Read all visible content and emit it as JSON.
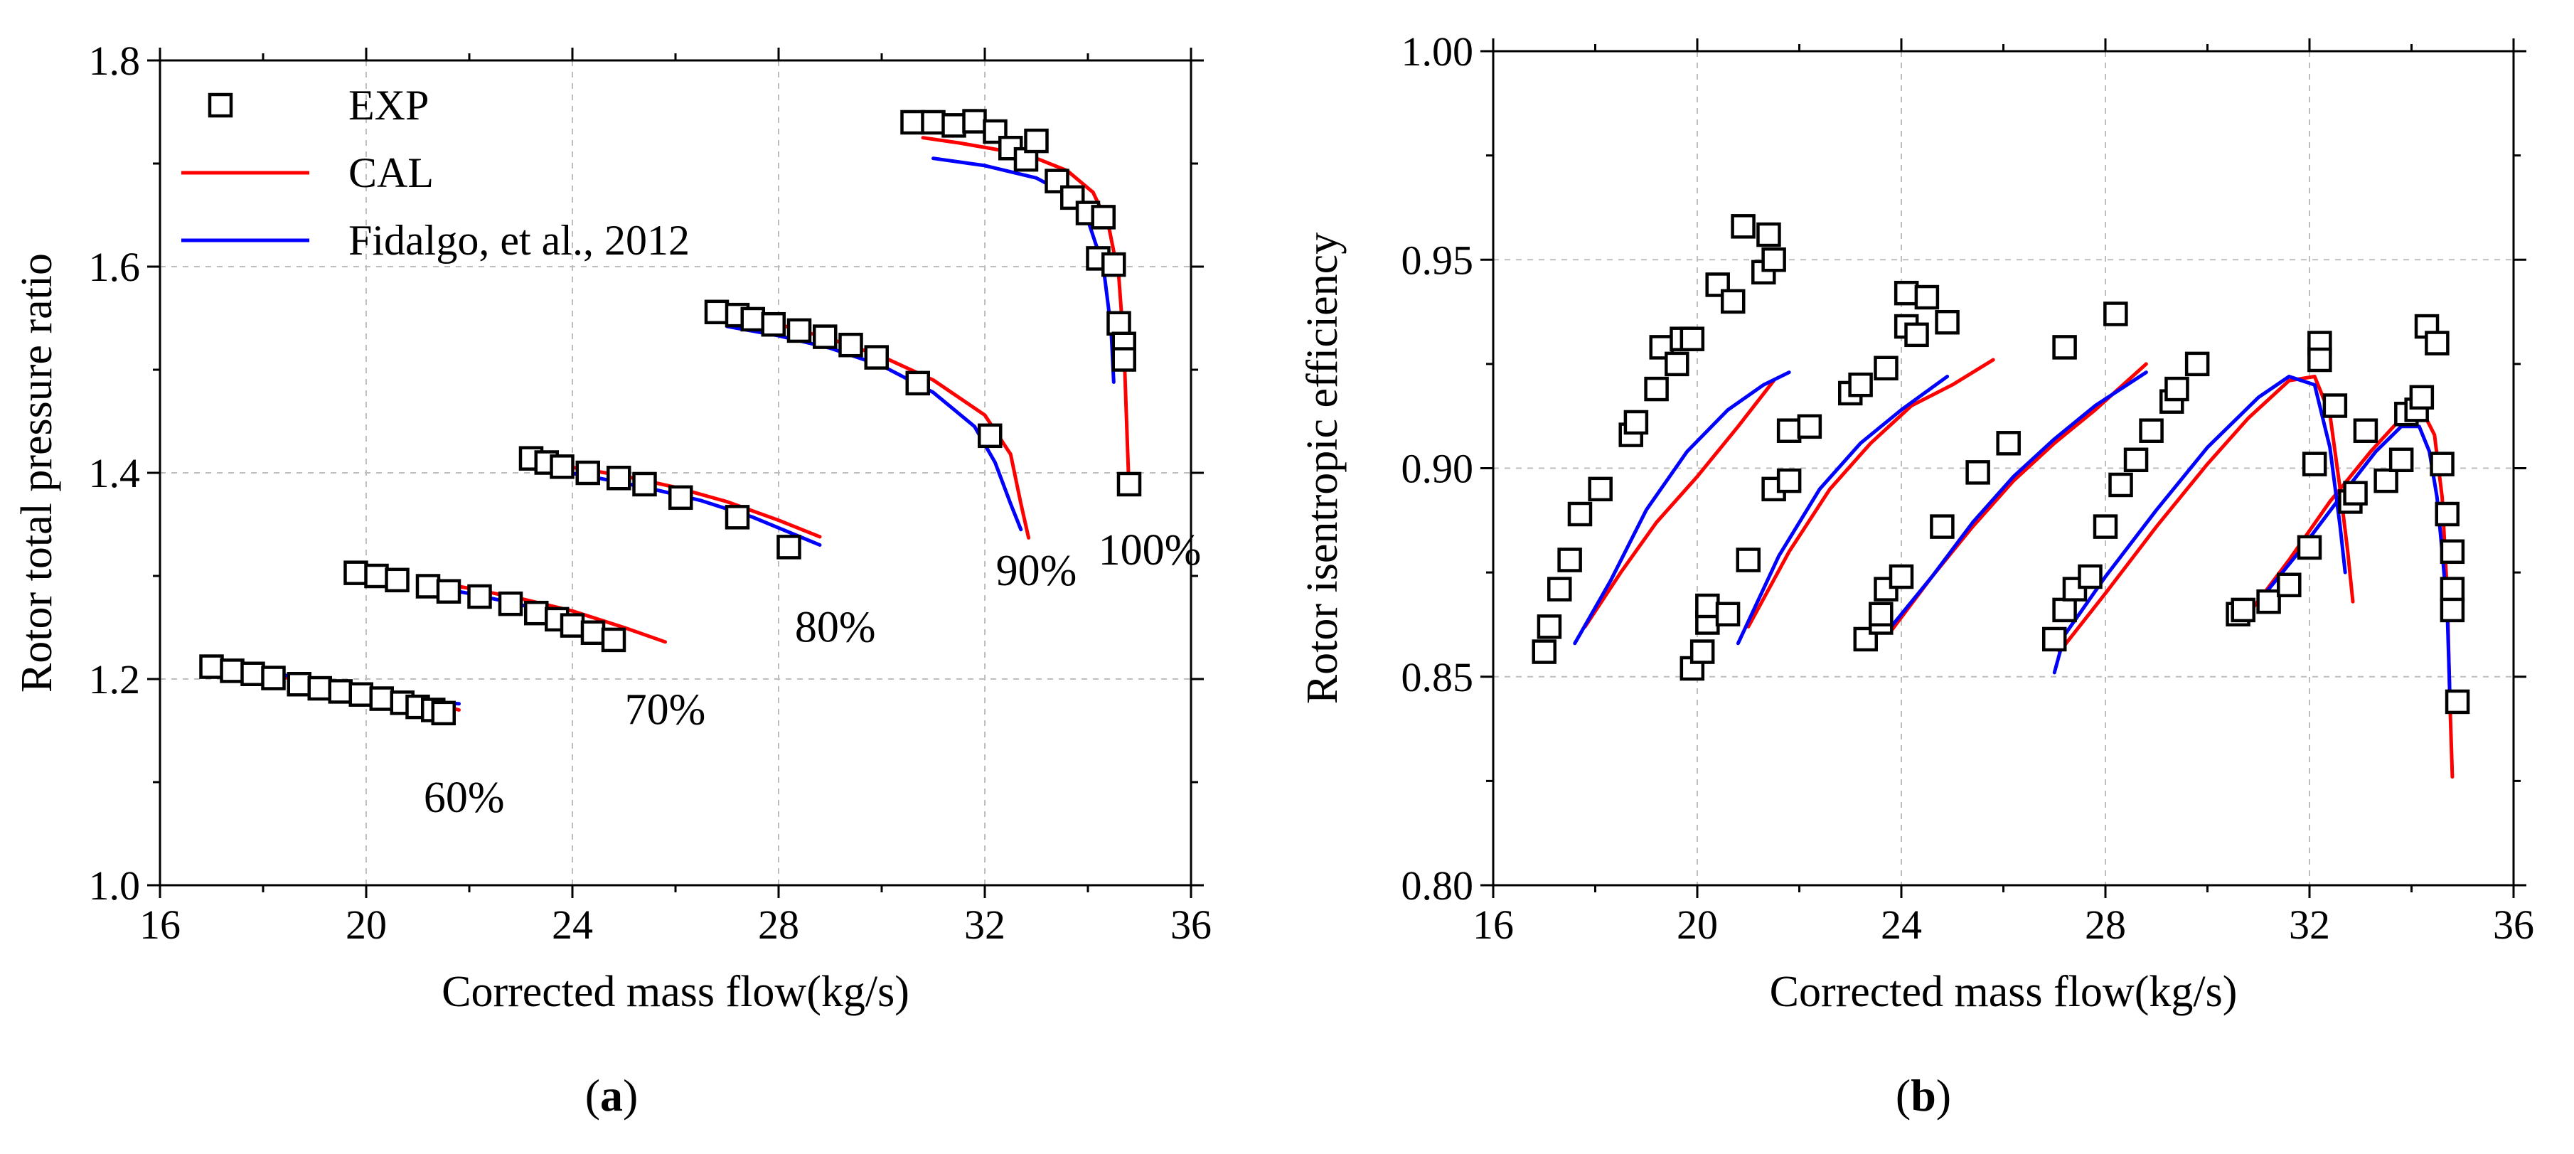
{
  "chart_data": [
    {
      "type": "scatter",
      "panel": "a",
      "panel_label": "a",
      "xlabel": "Corrected mass flow(kg/s)",
      "ylabel": "Rotor total pressure ratio",
      "xlim": [
        16,
        36
      ],
      "ylim": [
        1.0,
        1.8
      ],
      "xticks": [
        "16",
        "20",
        "24",
        "28",
        "32",
        "36"
      ],
      "yticks": [
        "1.0",
        "1.2",
        "1.4",
        "1.6",
        "1.8"
      ],
      "grid": true,
      "legend": {
        "position": "top-left",
        "entries": [
          {
            "label": "EXP",
            "kind": "marker",
            "color": "#000000"
          },
          {
            "label": "CAL",
            "kind": "line",
            "color": "#ff0000"
          },
          {
            "label": "Fidalgo, et al., 2012",
            "kind": "line",
            "color": "#0000ff"
          }
        ]
      },
      "annotations": [
        {
          "text": "60%",
          "x": 21.9,
          "y": 1.085
        },
        {
          "text": "70%",
          "x": 25.8,
          "y": 1.17
        },
        {
          "text": "80%",
          "x": 29.1,
          "y": 1.25
        },
        {
          "text": "90%",
          "x": 33.0,
          "y": 1.305
        },
        {
          "text": "100%",
          "x": 35.2,
          "y": 1.325
        }
      ],
      "series": [
        {
          "name": "EXP",
          "kind": "scatter",
          "color": "#000000",
          "x": [
            17.0,
            17.4,
            17.8,
            18.2,
            18.7,
            19.1,
            19.5,
            19.9,
            20.3,
            20.7,
            21.0,
            21.3,
            21.5,
            19.8,
            20.2,
            20.6,
            21.2,
            21.6,
            22.2,
            22.8,
            23.3,
            23.7,
            24.0,
            24.4,
            24.8,
            23.2,
            23.5,
            23.8,
            24.3,
            24.9,
            25.4,
            26.1,
            27.2,
            28.2,
            26.8,
            27.2,
            27.5,
            27.9,
            28.4,
            28.9,
            29.4,
            29.9,
            30.7,
            32.1,
            30.6,
            31.0,
            31.4,
            31.8,
            32.2,
            32.5,
            32.8,
            33.0,
            33.4,
            33.7,
            34.0,
            34.2,
            34.3,
            34.5,
            34.6,
            34.7,
            34.7,
            34.8
          ],
          "y": [
            1.212,
            1.208,
            1.205,
            1.201,
            1.195,
            1.191,
            1.188,
            1.185,
            1.181,
            1.177,
            1.173,
            1.17,
            1.167,
            1.303,
            1.3,
            1.296,
            1.29,
            1.285,
            1.28,
            1.273,
            1.264,
            1.258,
            1.252,
            1.245,
            1.238,
            1.414,
            1.41,
            1.406,
            1.4,
            1.395,
            1.389,
            1.376,
            1.357,
            1.328,
            1.556,
            1.553,
            1.549,
            1.544,
            1.538,
            1.532,
            1.524,
            1.512,
            1.487,
            1.436,
            1.74,
            1.74,
            1.737,
            1.741,
            1.731,
            1.715,
            1.704,
            1.722,
            1.683,
            1.667,
            1.652,
            1.608,
            1.648,
            1.602,
            1.545,
            1.525,
            1.51,
            1.389
          ]
        },
        {
          "name": "CAL",
          "kind": "line",
          "color": "#ff0000",
          "x": [
            17.5,
            18.5,
            19.5,
            20.5,
            21.5,
            21.8
          ],
          "y": [
            1.208,
            1.201,
            1.192,
            1.183,
            1.174,
            1.17
          ]
        },
        {
          "name": "CAL",
          "kind": "line",
          "color": "#ff0000",
          "x": [
            21.0,
            22.0,
            23.0,
            24.0,
            25.0,
            25.8
          ],
          "y": [
            1.297,
            1.288,
            1.278,
            1.266,
            1.25,
            1.236
          ]
        },
        {
          "name": "CAL",
          "kind": "line",
          "color": "#ff0000",
          "x": [
            23.8,
            25.0,
            26.0,
            27.0,
            28.0,
            28.8
          ],
          "y": [
            1.407,
            1.397,
            1.386,
            1.372,
            1.354,
            1.338
          ]
        },
        {
          "name": "CAL",
          "kind": "line",
          "color": "#ff0000",
          "x": [
            27.2,
            28.0,
            29.0,
            30.0,
            31.0,
            32.0,
            32.5,
            32.7,
            32.85
          ],
          "y": [
            1.553,
            1.544,
            1.53,
            1.513,
            1.49,
            1.456,
            1.418,
            1.37,
            1.337
          ]
        },
        {
          "name": "CAL",
          "kind": "line",
          "color": "#ff0000",
          "x": [
            30.8,
            31.5,
            32.3,
            33.0,
            33.6,
            34.1,
            34.4,
            34.6,
            34.7,
            34.75,
            34.8
          ],
          "y": [
            1.725,
            1.72,
            1.713,
            1.705,
            1.693,
            1.672,
            1.64,
            1.59,
            1.52,
            1.45,
            1.38
          ]
        },
        {
          "name": "Fidalgo, et al., 2012",
          "kind": "line",
          "color": "#0000ff",
          "x": [
            17.5,
            18.5,
            19.5,
            20.5,
            21.5,
            21.8
          ],
          "y": [
            1.211,
            1.203,
            1.194,
            1.185,
            1.177,
            1.176
          ]
        },
        {
          "name": "Fidalgo, et al., 2012",
          "kind": "line",
          "color": "#0000ff",
          "x": [
            21.0,
            22.0,
            23.0,
            24.0,
            24.8
          ],
          "y": [
            1.292,
            1.283,
            1.272,
            1.259,
            1.244
          ]
        },
        {
          "name": "Fidalgo, et al., 2012",
          "kind": "line",
          "color": "#0000ff",
          "x": [
            23.5,
            24.5,
            25.5,
            26.5,
            27.5,
            28.8
          ],
          "y": [
            1.404,
            1.395,
            1.385,
            1.373,
            1.357,
            1.33
          ]
        },
        {
          "name": "Fidalgo, et al., 2012",
          "kind": "line",
          "color": "#0000ff",
          "x": [
            27.0,
            28.0,
            29.0,
            30.0,
            31.0,
            31.8,
            32.2,
            32.5,
            32.7
          ],
          "y": [
            1.542,
            1.533,
            1.521,
            1.504,
            1.478,
            1.445,
            1.41,
            1.37,
            1.345
          ]
        },
        {
          "name": "Fidalgo, et al., 2012",
          "kind": "line",
          "color": "#0000ff",
          "x": [
            31.0,
            32.0,
            33.0,
            33.6,
            34.0,
            34.3,
            34.45,
            34.5
          ],
          "y": [
            1.705,
            1.698,
            1.686,
            1.67,
            1.645,
            1.6,
            1.54,
            1.488
          ]
        }
      ]
    },
    {
      "type": "scatter",
      "panel": "b",
      "panel_label": "b",
      "xlabel": "Corrected mass flow(kg/s)",
      "ylabel": "Rotor isentropic efficiency",
      "xlim": [
        16,
        36
      ],
      "ylim": [
        0.8,
        1.0
      ],
      "xticks": [
        "16",
        "20",
        "24",
        "28",
        "32",
        "36"
      ],
      "yticks": [
        "0.80",
        "0.85",
        "0.90",
        "0.95",
        "1.00"
      ],
      "grid": true,
      "series": [
        {
          "name": "EXP",
          "kind": "scatter",
          "color": "#000000",
          "x": [
            17.0,
            17.1,
            17.3,
            17.5,
            17.7,
            18.1,
            18.7,
            18.8,
            19.2,
            19.3,
            19.6,
            19.7,
            19.9,
            20.4,
            20.7,
            20.9,
            21.3,
            21.4,
            21.5,
            19.9,
            20.1,
            20.2,
            20.2,
            20.6,
            21.0,
            21.5,
            21.8,
            21.8,
            22.2,
            23.0,
            23.2,
            23.3,
            23.6,
            23.6,
            23.7,
            23.7,
            24.0,
            24.1,
            24.1,
            24.3,
            24.5,
            24.8,
            24.9,
            25.5,
            26.1,
            27.2,
            28.2,
            27.0,
            27.2,
            27.4,
            27.7,
            28.0,
            28.3,
            28.6,
            28.9,
            29.3,
            29.4,
            29.8,
            30.6,
            30.7,
            31.2,
            31.6,
            32.0,
            32.1,
            32.2,
            32.2,
            32.5,
            32.8,
            32.9,
            33.1,
            33.5,
            33.8,
            33.9,
            34.1,
            34.2,
            34.3,
            34.5,
            34.6,
            34.7,
            34.8,
            34.8,
            34.8,
            34.9
          ],
          "y": [
            0.856,
            0.862,
            0.871,
            0.878,
            0.889,
            0.895,
            0.908,
            0.911,
            0.919,
            0.929,
            0.925,
            0.931,
            0.931,
            0.944,
            0.94,
            0.958,
            0.947,
            0.956,
            0.95,
            0.852,
            0.856,
            0.863,
            0.867,
            0.865,
            0.878,
            0.895,
            0.897,
            0.909,
            0.91,
            0.918,
            0.92,
            0.859,
            0.863,
            0.865,
            0.871,
            0.924,
            0.874,
            0.934,
            0.942,
            0.932,
            0.941,
            0.886,
            0.935,
            0.899,
            0.906,
            0.929,
            0.937,
            0.859,
            0.866,
            0.871,
            0.874,
            0.886,
            0.896,
            0.902,
            0.909,
            0.916,
            0.919,
            0.925,
            0.865,
            0.866,
            0.868,
            0.872,
            0.881,
            0.901,
            0.93,
            0.926,
            0.915,
            0.892,
            0.894,
            0.909,
            0.897,
            0.902,
            0.913,
            0.914,
            0.917,
            0.934,
            0.93,
            0.901,
            0.889,
            0.88,
            0.871,
            0.866,
            0.844
          ]
        },
        {
          "name": "CAL",
          "kind": "line",
          "color": "#ff0000",
          "x": [
            17.8,
            18.5,
            19.2,
            20.0,
            20.8,
            21.5
          ],
          "y": [
            0.862,
            0.875,
            0.887,
            0.898,
            0.91,
            0.921
          ]
        },
        {
          "name": "CAL",
          "kind": "line",
          "color": "#ff0000",
          "x": [
            21.0,
            21.8,
            22.6,
            23.4,
            24.2,
            25.0,
            25.8
          ],
          "y": [
            0.862,
            0.88,
            0.895,
            0.906,
            0.915,
            0.92,
            0.926
          ]
        },
        {
          "name": "CAL",
          "kind": "line",
          "color": "#ff0000",
          "x": [
            23.8,
            24.6,
            25.4,
            26.2,
            27.0,
            27.8,
            28.8
          ],
          "y": [
            0.861,
            0.874,
            0.886,
            0.897,
            0.906,
            0.914,
            0.925
          ]
        },
        {
          "name": "CAL",
          "kind": "line",
          "color": "#ff0000",
          "x": [
            27.1,
            28.0,
            29.0,
            30.0,
            30.8,
            31.6,
            32.1,
            32.4,
            32.6,
            32.75,
            32.85
          ],
          "y": [
            0.856,
            0.87,
            0.886,
            0.901,
            0.912,
            0.921,
            0.922,
            0.913,
            0.895,
            0.88,
            0.868
          ]
        },
        {
          "name": "CAL",
          "kind": "line",
          "color": "#ff0000",
          "x": [
            30.8,
            31.6,
            32.4,
            33.2,
            33.8,
            34.2,
            34.45,
            34.6,
            34.7,
            34.75,
            34.8
          ],
          "y": [
            0.865,
            0.878,
            0.892,
            0.904,
            0.912,
            0.914,
            0.908,
            0.893,
            0.87,
            0.845,
            0.826
          ]
        },
        {
          "name": "Fidalgo, et al., 2012",
          "kind": "line",
          "color": "#0000ff",
          "x": [
            17.6,
            18.3,
            19.0,
            19.8,
            20.6,
            21.3,
            21.8
          ],
          "y": [
            0.858,
            0.873,
            0.89,
            0.904,
            0.914,
            0.92,
            0.923
          ]
        },
        {
          "name": "Fidalgo, et al., 2012",
          "kind": "line",
          "color": "#0000ff",
          "x": [
            20.8,
            21.6,
            22.4,
            23.2,
            24.0,
            24.9
          ],
          "y": [
            0.858,
            0.879,
            0.895,
            0.906,
            0.914,
            0.922
          ]
        },
        {
          "name": "Fidalgo, et al., 2012",
          "kind": "line",
          "color": "#0000ff",
          "x": [
            23.8,
            24.6,
            25.4,
            26.2,
            27.0,
            27.8,
            28.8
          ],
          "y": [
            0.862,
            0.874,
            0.887,
            0.898,
            0.907,
            0.915,
            0.923
          ]
        },
        {
          "name": "Fidalgo, et al., 2012",
          "kind": "line",
          "color": "#0000ff",
          "x": [
            27.0,
            27.2,
            28.0,
            29.0,
            30.0,
            31.0,
            31.6,
            32.1,
            32.4,
            32.6,
            32.7
          ],
          "y": [
            0.851,
            0.86,
            0.874,
            0.89,
            0.905,
            0.917,
            0.922,
            0.92,
            0.905,
            0.886,
            0.875
          ]
        },
        {
          "name": "Fidalgo, et al., 2012",
          "kind": "line",
          "color": "#0000ff",
          "x": [
            31.0,
            31.8,
            32.6,
            33.3,
            33.8,
            34.15,
            34.35,
            34.5,
            34.6,
            34.7,
            34.75
          ],
          "y": [
            0.868,
            0.88,
            0.893,
            0.904,
            0.91,
            0.91,
            0.904,
            0.893,
            0.88,
            0.866,
            0.846
          ]
        }
      ]
    }
  ]
}
